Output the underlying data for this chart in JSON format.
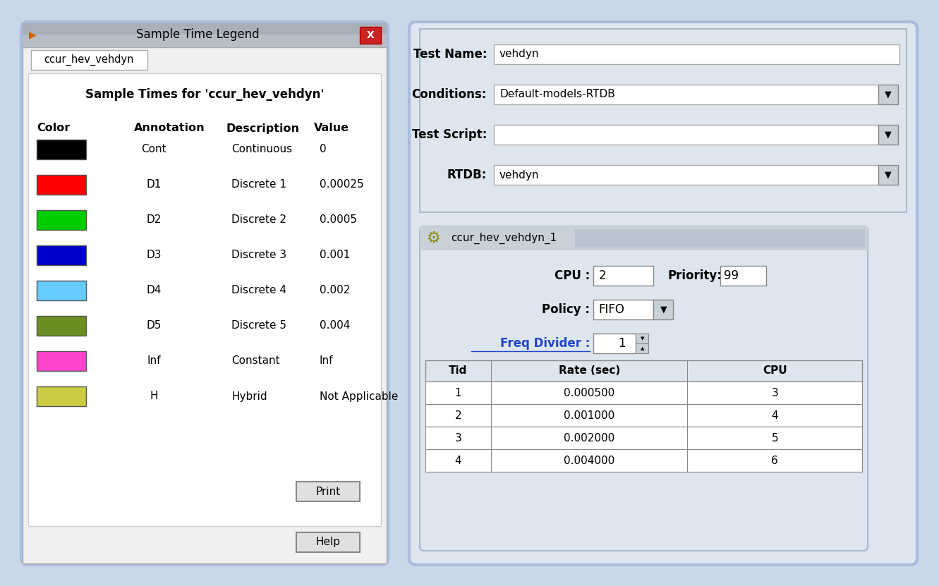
{
  "bg_color": "#c8d8e8",
  "left_panel": {
    "title_bar": "Sample Time Legend",
    "tab_label": "ccur_hev_vehdyn",
    "heading": "Sample Times for 'ccur_hev_vehdyn'",
    "col_headers": [
      "Color",
      "Annotation",
      "Description",
      "Value"
    ],
    "rows": [
      {
        "color": "#000000",
        "annotation": "Cont",
        "description": "Continuous",
        "value": "0"
      },
      {
        "color": "#ff0000",
        "annotation": "D1",
        "description": "Discrete 1",
        "value": "0.00025"
      },
      {
        "color": "#00cc00",
        "annotation": "D2",
        "description": "Discrete 2",
        "value": "0.0005"
      },
      {
        "color": "#0000cc",
        "annotation": "D3",
        "description": "Discrete 3",
        "value": "0.001"
      },
      {
        "color": "#66ccff",
        "annotation": "D4",
        "description": "Discrete 4",
        "value": "0.002"
      },
      {
        "color": "#6b8e23",
        "annotation": "D5",
        "description": "Discrete 5",
        "value": "0.004"
      },
      {
        "color": "#ff44cc",
        "annotation": "Inf",
        "description": "Constant",
        "value": "Inf"
      },
      {
        "color": "#cccc44",
        "annotation": "H",
        "description": "Hybrid",
        "value": "Not Applicable"
      }
    ],
    "print_btn": "Print",
    "help_btn": "Help"
  },
  "right_panel": {
    "fields": [
      {
        "label": "Test Name:",
        "value": "vehdyn",
        "has_dropdown": false
      },
      {
        "label": "Conditions:",
        "value": "Default-models-RTDB",
        "has_dropdown": true
      },
      {
        "label": "Test Script:",
        "value": "",
        "has_dropdown": true
      },
      {
        "label": "RTDB:",
        "value": "vehdyn",
        "has_dropdown": true
      }
    ],
    "sub_panel_title": "ccur_hev_vehdyn_1",
    "cpu_label": "CPU :",
    "cpu_value": "2",
    "priority_label": "Priority:",
    "priority_value": "99",
    "policy_label": "Policy :",
    "policy_value": "FIFO",
    "freq_label": "Freq Divider :",
    "freq_value": "1",
    "table_headers": [
      "Tid",
      "Rate (sec)",
      "CPU"
    ],
    "table_rows": [
      [
        "1",
        "0.000500",
        "3"
      ],
      [
        "2",
        "0.001000",
        "4"
      ],
      [
        "3",
        "0.002000",
        "5"
      ],
      [
        "4",
        "0.004000",
        "6"
      ]
    ]
  }
}
